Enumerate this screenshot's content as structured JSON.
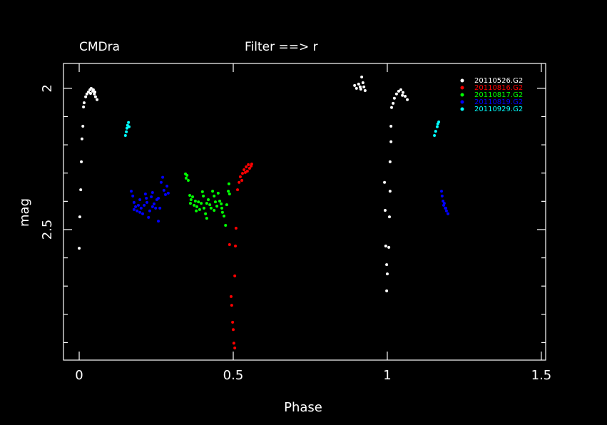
{
  "chart_data": {
    "type": "scatter",
    "title": "CMDra",
    "subtitle": "Filter ==> r",
    "xlabel": "Phase",
    "ylabel": "mag",
    "xlim": [
      -0.051,
      1.514
    ],
    "ylim": [
      2.962,
      1.912
    ],
    "xticks": [
      0,
      0.5,
      1,
      1.5
    ],
    "yticks": [
      2,
      2.5
    ],
    "yminor": [
      2.1,
      2.2,
      2.3,
      2.4,
      2.6,
      2.7,
      2.8,
      2.9
    ],
    "legend": "upper-right",
    "series": [
      {
        "name": "20110526.G2",
        "color": "#ffffff",
        "x": [
          0.0,
          0.002,
          0.005,
          0.007,
          0.009,
          0.012,
          0.014,
          0.016,
          0.021,
          0.025,
          0.03,
          0.035,
          0.039,
          0.044,
          0.049,
          0.053,
          0.058,
          0.037,
          0.046,
          0.051,
          0.894,
          0.9,
          0.907,
          0.912,
          0.917,
          0.921,
          0.924,
          0.928,
          0.914,
          0.991,
          0.993,
          0.995,
          0.998,
          1.0,
          0.998,
          1.005,
          1.007,
          1.009,
          1.009,
          1.012,
          1.012,
          1.014,
          1.019,
          1.023,
          1.03,
          1.037,
          1.044,
          1.051,
          1.058,
          1.065,
          1.049
        ],
        "y": [
          2.566,
          2.455,
          2.359,
          2.26,
          2.179,
          2.134,
          2.066,
          2.051,
          2.03,
          2.02,
          2.013,
          2.005,
          2.0,
          2.01,
          2.02,
          2.03,
          2.04,
          2.018,
          2.005,
          2.013,
          1.99,
          2.0,
          1.985,
          1.995,
          1.96,
          1.98,
          1.995,
          2.008,
          2.003,
          2.333,
          2.432,
          2.558,
          2.624,
          2.657,
          2.717,
          2.563,
          2.455,
          2.364,
          2.26,
          2.189,
          2.134,
          2.068,
          2.053,
          2.035,
          2.02,
          2.01,
          2.005,
          2.015,
          2.028,
          2.04,
          2.025
        ]
      },
      {
        "name": "20110816.G2",
        "color": "#ff0000",
        "x": [
          0.488,
          0.507,
          0.505,
          0.493,
          0.495,
          0.498,
          0.5,
          0.502,
          0.505,
          0.509,
          0.514,
          0.519,
          0.523,
          0.53,
          0.535,
          0.542,
          0.549,
          0.553,
          0.558,
          0.539,
          0.546,
          0.528,
          0.56
        ],
        "y": [
          2.553,
          2.558,
          2.664,
          2.737,
          2.768,
          2.828,
          2.854,
          2.902,
          2.919,
          2.495,
          2.359,
          2.333,
          2.313,
          2.301,
          2.288,
          2.278,
          2.27,
          2.283,
          2.275,
          2.298,
          2.293,
          2.326,
          2.268
        ]
      },
      {
        "name": "20110817.G2",
        "color": "#00ff00",
        "x": [
          0.345,
          0.35,
          0.347,
          0.354,
          0.359,
          0.363,
          0.368,
          0.373,
          0.377,
          0.382,
          0.387,
          0.391,
          0.396,
          0.4,
          0.405,
          0.41,
          0.414,
          0.419,
          0.424,
          0.428,
          0.433,
          0.438,
          0.442,
          0.447,
          0.451,
          0.456,
          0.461,
          0.465,
          0.47,
          0.475,
          0.479,
          0.484,
          0.486,
          0.488,
          0.403,
          0.38,
          0.438,
          0.463,
          0.361,
          0.414
        ],
        "y": [
          2.303,
          2.308,
          2.318,
          2.326,
          2.379,
          2.394,
          2.384,
          2.414,
          2.399,
          2.419,
          2.402,
          2.429,
          2.407,
          2.366,
          2.424,
          2.444,
          2.46,
          2.394,
          2.412,
          2.424,
          2.364,
          2.381,
          2.402,
          2.417,
          2.371,
          2.399,
          2.409,
          2.439,
          2.452,
          2.485,
          2.412,
          2.364,
          2.338,
          2.374,
          2.381,
          2.434,
          2.432,
          2.424,
          2.407,
          2.407
        ]
      },
      {
        "name": "20110819.G2",
        "color": "#0000ff",
        "x": [
          0.169,
          0.174,
          0.178,
          0.183,
          0.188,
          0.192,
          0.197,
          0.201,
          0.206,
          0.211,
          0.215,
          0.22,
          0.225,
          0.229,
          0.234,
          0.238,
          0.243,
          0.248,
          0.252,
          0.257,
          0.262,
          0.266,
          0.271,
          0.275,
          0.28,
          0.285,
          0.289,
          0.178,
          0.197,
          0.238,
          0.218,
          0.257,
          1.176,
          1.178,
          1.181,
          1.183,
          1.188,
          1.192,
          1.197,
          1.185,
          1.19
        ],
        "y": [
          2.364,
          2.381,
          2.404,
          2.419,
          2.434,
          2.414,
          2.394,
          2.424,
          2.444,
          2.414,
          2.374,
          2.404,
          2.457,
          2.434,
          2.384,
          2.369,
          2.409,
          2.424,
          2.394,
          2.47,
          2.424,
          2.333,
          2.315,
          2.361,
          2.376,
          2.346,
          2.371,
          2.429,
          2.439,
          2.419,
          2.389,
          2.389,
          2.364,
          2.381,
          2.399,
          2.414,
          2.424,
          2.434,
          2.444,
          2.407,
          2.424
        ]
      },
      {
        "name": "20110929.G2",
        "color": "#00ffff",
        "x": [
          0.15,
          0.153,
          0.155,
          0.157,
          0.16,
          0.162,
          1.153,
          1.157,
          1.162,
          1.164,
          1.167
        ],
        "y": [
          2.167,
          2.154,
          2.141,
          2.131,
          2.121,
          2.136,
          2.167,
          2.152,
          2.136,
          2.126,
          2.119
        ]
      }
    ]
  }
}
